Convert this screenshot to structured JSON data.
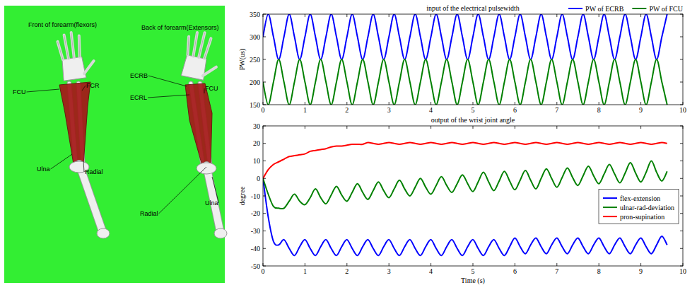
{
  "diagram": {
    "panels": [
      {
        "title": "Front of forearm(flexors)",
        "labels": [
          "FCU",
          "FCR",
          "Ulna",
          "Radial"
        ]
      },
      {
        "title": "Back of forearm(Extensors)",
        "labels": [
          "ECRB",
          "ECRL",
          "FCU",
          "Radial",
          "Ulna"
        ]
      }
    ]
  },
  "chart_data": [
    {
      "type": "line",
      "title": "input of the electrical pulsewidth",
      "y_label": "PW(us)",
      "xlim": [
        0,
        10
      ],
      "xticks": [
        0,
        1,
        2,
        3,
        4,
        5,
        6,
        7,
        8,
        9,
        10
      ],
      "ylim": [
        150,
        350
      ],
      "yticks": [
        150,
        200,
        250,
        300,
        350
      ],
      "grid": false,
      "legend": "top",
      "x": [
        0,
        0.125,
        0.25,
        0.375,
        0.5,
        0.625,
        0.75,
        0.875,
        1,
        1.125,
        1.25,
        1.375,
        1.5,
        1.625,
        1.75,
        1.875,
        2,
        2.125,
        2.25,
        2.375,
        2.5,
        2.625,
        2.75,
        2.875,
        3,
        3.125,
        3.25,
        3.375,
        3.5,
        3.625,
        3.75,
        3.875,
        4,
        4.125,
        4.25,
        4.375,
        4.5,
        4.625,
        4.75,
        4.875,
        5,
        5.125,
        5.25,
        5.375,
        5.5,
        5.625,
        5.75,
        5.875,
        6,
        6.125,
        6.25,
        6.375,
        6.5,
        6.625,
        6.75,
        6.875,
        7,
        7.125,
        7.25,
        7.375,
        7.5,
        7.625,
        7.75,
        7.875,
        8,
        8.125,
        8.25,
        8.375,
        8.5,
        8.625,
        8.75,
        8.875,
        9,
        9.125,
        9.25,
        9.375,
        9.5,
        9.625
      ],
      "series": [
        {
          "name": "PW of ECRB",
          "color": "#0000ff",
          "values": [
            300,
            350,
            300,
            250,
            300,
            350,
            300,
            250,
            300,
            350,
            300,
            250,
            300,
            350,
            300,
            250,
            300,
            350,
            300,
            250,
            300,
            350,
            300,
            250,
            300,
            350,
            300,
            250,
            300,
            350,
            300,
            250,
            300,
            350,
            300,
            250,
            300,
            350,
            300,
            250,
            300,
            350,
            300,
            250,
            300,
            350,
            300,
            250,
            300,
            350,
            300,
            250,
            300,
            350,
            300,
            250,
            300,
            350,
            300,
            250,
            300,
            350,
            300,
            250,
            300,
            350,
            300,
            250,
            300,
            350,
            300,
            250,
            300,
            350,
            300,
            250,
            300,
            350
          ]
        },
        {
          "name": "PW of FCU",
          "color": "#008000",
          "values": [
            200,
            150,
            200,
            250,
            200,
            150,
            200,
            250,
            200,
            150,
            200,
            250,
            200,
            150,
            200,
            250,
            200,
            150,
            200,
            250,
            200,
            150,
            200,
            250,
            200,
            150,
            200,
            250,
            200,
            150,
            200,
            250,
            200,
            150,
            200,
            250,
            200,
            150,
            200,
            250,
            200,
            150,
            200,
            250,
            200,
            150,
            200,
            250,
            200,
            150,
            200,
            250,
            200,
            150,
            200,
            250,
            200,
            150,
            200,
            250,
            200,
            150,
            200,
            250,
            200,
            150,
            200,
            250,
            200,
            150,
            200,
            250,
            200,
            150,
            200,
            250,
            200,
            150
          ]
        }
      ]
    },
    {
      "type": "line",
      "title": "output of the wrist joint angle",
      "x_label": "Time (s)",
      "y_label": "degree",
      "xlim": [
        0,
        10
      ],
      "xticks": [
        0,
        1,
        2,
        3,
        4,
        5,
        6,
        7,
        8,
        9,
        10
      ],
      "ylim": [
        -50,
        30
      ],
      "yticks": [
        -50,
        -40,
        -30,
        -20,
        -10,
        0,
        10,
        20,
        30
      ],
      "grid": false,
      "legend": "lower right",
      "x": [
        0,
        0.125,
        0.25,
        0.375,
        0.5,
        0.625,
        0.75,
        0.875,
        1,
        1.125,
        1.25,
        1.375,
        1.5,
        1.625,
        1.75,
        1.875,
        2,
        2.125,
        2.25,
        2.375,
        2.5,
        2.625,
        2.75,
        2.875,
        3,
        3.125,
        3.25,
        3.375,
        3.5,
        3.625,
        3.75,
        3.875,
        4,
        4.125,
        4.25,
        4.375,
        4.5,
        4.625,
        4.75,
        4.875,
        5,
        5.125,
        5.25,
        5.375,
        5.5,
        5.625,
        5.75,
        5.875,
        6,
        6.125,
        6.25,
        6.375,
        6.5,
        6.625,
        6.75,
        6.875,
        7,
        7.125,
        7.25,
        7.375,
        7.5,
        7.625,
        7.75,
        7.875,
        8,
        8.125,
        8.25,
        8.375,
        8.5,
        8.625,
        8.75,
        8.875,
        9,
        9.125,
        9.25,
        9.375,
        9.5,
        9.625
      ],
      "series": [
        {
          "name": "flex-extension",
          "color": "#0000ff",
          "values": [
            0,
            -22,
            -36,
            -38,
            -35,
            -40,
            -44,
            -39,
            -35,
            -40,
            -44,
            -39,
            -35,
            -40,
            -44,
            -39,
            -35,
            -40,
            -44,
            -39,
            -35,
            -40,
            -44,
            -39,
            -35,
            -40,
            -44,
            -39,
            -35,
            -40,
            -44,
            -39,
            -35,
            -40,
            -44,
            -39,
            -35,
            -40,
            -44,
            -39,
            -35,
            -40,
            -44,
            -39,
            -35,
            -40,
            -44,
            -39,
            -34,
            -39,
            -43,
            -38,
            -34,
            -39,
            -43,
            -38,
            -34,
            -39,
            -43,
            -38,
            -34,
            -39,
            -43,
            -38,
            -34,
            -39,
            -43,
            -38,
            -34,
            -39,
            -43,
            -38,
            -34,
            -39,
            -43,
            -38,
            -33,
            -38
          ]
        },
        {
          "name": "ulnar-rad-deviation",
          "color": "#008000",
          "values": [
            0,
            -9,
            -16,
            -17,
            -17,
            -13,
            -9,
            -13,
            -15,
            -11,
            -6,
            -11,
            -14.5,
            -9.5,
            -4.5,
            -9.5,
            -13,
            -8,
            -3,
            -8,
            -12,
            -7,
            -2,
            -7,
            -11,
            -6,
            -1,
            -6,
            -10,
            -5,
            0,
            -5,
            -9,
            -4,
            1,
            -4,
            -8,
            -3,
            2,
            -3,
            -7.5,
            -2,
            3.5,
            -2,
            -7,
            -1.5,
            4,
            -1.5,
            -6.5,
            -1,
            4.5,
            -1,
            -6,
            0,
            5.5,
            0,
            -5,
            0.5,
            6,
            0.5,
            -4,
            1.5,
            7,
            1.5,
            -3,
            2.5,
            8,
            2.5,
            -2.5,
            3,
            9,
            3,
            -2,
            3.5,
            10,
            3.5,
            -1.5,
            4
          ]
        },
        {
          "name": "pron-supination",
          "color": "#ff0000",
          "values": [
            0,
            5,
            8,
            9.5,
            11,
            12.5,
            13,
            13.5,
            14,
            15.5,
            16,
            16.5,
            17,
            18,
            18.5,
            18.5,
            19,
            19.5,
            19.5,
            19.5,
            20.5,
            20,
            19.5,
            20,
            20.5,
            20,
            19.5,
            20,
            20.5,
            20,
            19.5,
            20,
            20.5,
            20,
            19.5,
            20,
            20.5,
            20,
            19.5,
            20,
            20.5,
            20,
            19.5,
            20,
            20.5,
            20,
            19.5,
            20,
            20.5,
            20,
            19.5,
            20,
            20.5,
            20,
            19.5,
            20,
            20.5,
            20,
            19.5,
            20,
            20.5,
            20,
            19.5,
            20,
            20.5,
            20,
            19.5,
            20,
            20.5,
            20,
            19.5,
            20,
            20.5,
            20,
            19.5,
            20,
            20.5,
            20
          ]
        }
      ]
    }
  ]
}
